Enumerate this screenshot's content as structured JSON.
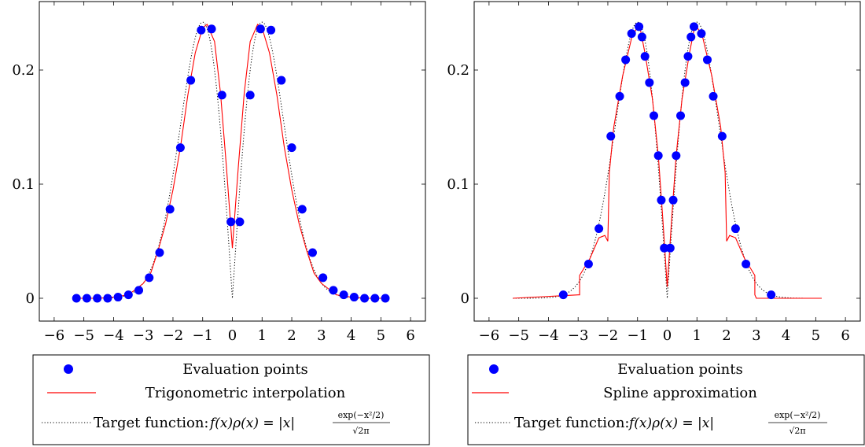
{
  "chart_data": [
    {
      "type": "scatter",
      "title": "",
      "xlabel": "",
      "ylabel": "",
      "xlim": [
        -6.5,
        6.5
      ],
      "ylim": [
        -0.02,
        0.26
      ],
      "xticks": [
        -6,
        -5,
        -4,
        -3,
        -2,
        -1,
        0,
        1,
        2,
        3,
        4,
        5,
        6
      ],
      "xtick_labels": [
        "−6",
        "−5",
        "−4",
        "−3",
        "−2",
        "−1",
        "0",
        "1",
        "2",
        "3",
        "4",
        "5",
        "6"
      ],
      "yticks": [
        0,
        0.1,
        0.2
      ],
      "ytick_labels": [
        "0",
        "0.1",
        "0.2"
      ],
      "grid": false,
      "legend_position": "below",
      "series": [
        {
          "name": "Evaluation points",
          "kind": "markers",
          "color": "#0000ff",
          "points": [
            [
              -5.25,
              0.0
            ],
            [
              -4.9,
              0.0
            ],
            [
              -4.55,
              0.0
            ],
            [
              -4.2,
              0.0
            ],
            [
              -3.85,
              0.001
            ],
            [
              -3.5,
              0.003
            ],
            [
              -3.15,
              0.007
            ],
            [
              -2.8,
              0.018
            ],
            [
              -2.45,
              0.04
            ],
            [
              -2.1,
              0.078
            ],
            [
              -1.75,
              0.132
            ],
            [
              -1.4,
              0.191
            ],
            [
              -1.05,
              0.235
            ],
            [
              -0.7,
              0.236
            ],
            [
              -0.35,
              0.178
            ],
            [
              -0.05,
              0.067
            ],
            [
              0.25,
              0.067
            ],
            [
              0.6,
              0.178
            ],
            [
              0.95,
              0.236
            ],
            [
              1.3,
              0.235
            ],
            [
              1.65,
              0.191
            ],
            [
              2.0,
              0.132
            ],
            [
              2.35,
              0.078
            ],
            [
              2.7,
              0.04
            ],
            [
              3.05,
              0.018
            ],
            [
              3.4,
              0.007
            ],
            [
              3.75,
              0.003
            ],
            [
              4.1,
              0.001
            ],
            [
              4.45,
              0.0
            ],
            [
              4.8,
              0.0
            ],
            [
              5.15,
              0.0
            ]
          ]
        },
        {
          "name": "Trigonometric interpolation",
          "kind": "line",
          "style": "solid",
          "color": "#ff0000",
          "points": [
            [
              -5.25,
              0.0
            ],
            [
              -4.5,
              0.0
            ],
            [
              -4.0,
              0.001
            ],
            [
              -3.5,
              0.003
            ],
            [
              -3.0,
              0.013
            ],
            [
              -2.75,
              0.022
            ],
            [
              -2.5,
              0.042
            ],
            [
              -2.25,
              0.065
            ],
            [
              -2.0,
              0.095
            ],
            [
              -1.75,
              0.132
            ],
            [
              -1.5,
              0.178
            ],
            [
              -1.25,
              0.215
            ],
            [
              -1.0,
              0.237
            ],
            [
              -0.85,
              0.24
            ],
            [
              -0.6,
              0.225
            ],
            [
              -0.4,
              0.18
            ],
            [
              -0.2,
              0.115
            ],
            [
              0.0,
              0.044
            ],
            [
              0.2,
              0.115
            ],
            [
              0.4,
              0.18
            ],
            [
              0.6,
              0.225
            ],
            [
              0.85,
              0.24
            ],
            [
              1.0,
              0.237
            ],
            [
              1.25,
              0.215
            ],
            [
              1.5,
              0.178
            ],
            [
              1.75,
              0.132
            ],
            [
              2.0,
              0.095
            ],
            [
              2.25,
              0.065
            ],
            [
              2.5,
              0.042
            ],
            [
              2.75,
              0.022
            ],
            [
              3.0,
              0.013
            ],
            [
              3.5,
              0.003
            ],
            [
              4.0,
              0.001
            ],
            [
              4.5,
              0.0
            ],
            [
              5.2,
              0.0
            ]
          ]
        },
        {
          "name": "Target function: f(x)ρ(x) = |x| exp(−x²/2)/√(2π)",
          "kind": "line",
          "style": "dotted",
          "color": "#000000",
          "function": "abs(x)*exp(-x*x/2)/sqrt(2*pi)",
          "domain": [
            -5.2,
            5.2
          ]
        }
      ]
    },
    {
      "type": "scatter",
      "title": "",
      "xlabel": "",
      "ylabel": "",
      "xlim": [
        -6.5,
        6.5
      ],
      "ylim": [
        -0.02,
        0.26
      ],
      "xticks": [
        -6,
        -5,
        -4,
        -3,
        -2,
        -1,
        0,
        1,
        2,
        3,
        4,
        5,
        6
      ],
      "xtick_labels": [
        "−6",
        "−5",
        "−4",
        "−3",
        "−2",
        "−1",
        "0",
        "1",
        "2",
        "3",
        "4",
        "5",
        "6"
      ],
      "yticks": [
        0,
        0.1,
        0.2
      ],
      "ytick_labels": [
        "0",
        "0.1",
        "0.2"
      ],
      "grid": false,
      "legend_position": "below",
      "series": [
        {
          "name": "Evaluation points",
          "kind": "markers",
          "color": "#0000ff",
          "points": [
            [
              -3.5,
              0.003
            ],
            [
              -2.65,
              0.03
            ],
            [
              -2.3,
              0.061
            ],
            [
              -1.9,
              0.142
            ],
            [
              -1.6,
              0.177
            ],
            [
              -1.4,
              0.209
            ],
            [
              -1.2,
              0.232
            ],
            [
              -0.95,
              0.238
            ],
            [
              -0.85,
              0.229
            ],
            [
              -0.75,
              0.212
            ],
            [
              -0.6,
              0.189
            ],
            [
              -0.45,
              0.16
            ],
            [
              -0.3,
              0.125
            ],
            [
              -0.2,
              0.086
            ],
            [
              -0.1,
              0.044
            ],
            [
              0.1,
              0.044
            ],
            [
              0.2,
              0.086
            ],
            [
              0.3,
              0.125
            ],
            [
              0.45,
              0.16
            ],
            [
              0.6,
              0.189
            ],
            [
              0.7,
              0.212
            ],
            [
              0.8,
              0.229
            ],
            [
              0.9,
              0.238
            ],
            [
              1.15,
              0.232
            ],
            [
              1.35,
              0.209
            ],
            [
              1.55,
              0.177
            ],
            [
              1.85,
              0.142
            ],
            [
              2.3,
              0.061
            ],
            [
              2.65,
              0.03
            ],
            [
              3.5,
              0.003
            ]
          ]
        },
        {
          "name": "Spline approximation",
          "kind": "line",
          "style": "solid",
          "color": "#ff0000",
          "points": [
            [
              -5.2,
              0.0
            ],
            [
              -3.0,
              0.003
            ],
            [
              -2.95,
              0.003
            ],
            [
              -2.95,
              0.02
            ],
            [
              -2.6,
              0.035
            ],
            [
              -2.3,
              0.053
            ],
            [
              -2.1,
              0.055
            ],
            [
              -2.0,
              0.05
            ],
            [
              -1.95,
              0.11
            ],
            [
              -1.8,
              0.15
            ],
            [
              -1.5,
              0.195
            ],
            [
              -1.2,
              0.228
            ],
            [
              -1.0,
              0.238
            ],
            [
              -0.9,
              0.235
            ],
            [
              -0.75,
              0.215
            ],
            [
              -0.5,
              0.175
            ],
            [
              -0.3,
              0.125
            ],
            [
              -0.15,
              0.07
            ],
            [
              0.0,
              0.01
            ],
            [
              0.15,
              0.07
            ],
            [
              0.3,
              0.125
            ],
            [
              0.5,
              0.175
            ],
            [
              0.75,
              0.215
            ],
            [
              0.9,
              0.235
            ],
            [
              1.0,
              0.238
            ],
            [
              1.2,
              0.228
            ],
            [
              1.5,
              0.195
            ],
            [
              1.8,
              0.15
            ],
            [
              1.95,
              0.11
            ],
            [
              2.0,
              0.05
            ],
            [
              2.1,
              0.055
            ],
            [
              2.3,
              0.053
            ],
            [
              2.6,
              0.035
            ],
            [
              2.95,
              0.02
            ],
            [
              2.95,
              0.003
            ],
            [
              3.0,
              0.0
            ],
            [
              5.2,
              0.0
            ]
          ]
        },
        {
          "name": "Target function: f(x)ρ(x) = |x| exp(−x²/2)/√(2π)",
          "kind": "line",
          "style": "dotted",
          "color": "#000000",
          "function": "abs(x)*exp(-x*x/2)/sqrt(2*pi)",
          "domain": [
            -5.2,
            5.2
          ]
        }
      ]
    }
  ],
  "legends": [
    {
      "evaluation_label": "Evaluation points",
      "interp_label": "Trigonometric interpolation",
      "target_prefix": "Target function:",
      "target_formula": "f(x)ρ(x) = |x|",
      "frac_num": "exp(−x²/2)",
      "frac_den": "√2π"
    },
    {
      "evaluation_label": "Evaluation points",
      "interp_label": "Spline approximation",
      "target_prefix": "Target function:",
      "target_formula": "f(x)ρ(x) = |x|",
      "frac_num": "exp(−x²/2)",
      "frac_den": "√2π"
    }
  ],
  "colors": {
    "points": "#0000ff",
    "interp": "#ff0000",
    "target": "#000000"
  }
}
